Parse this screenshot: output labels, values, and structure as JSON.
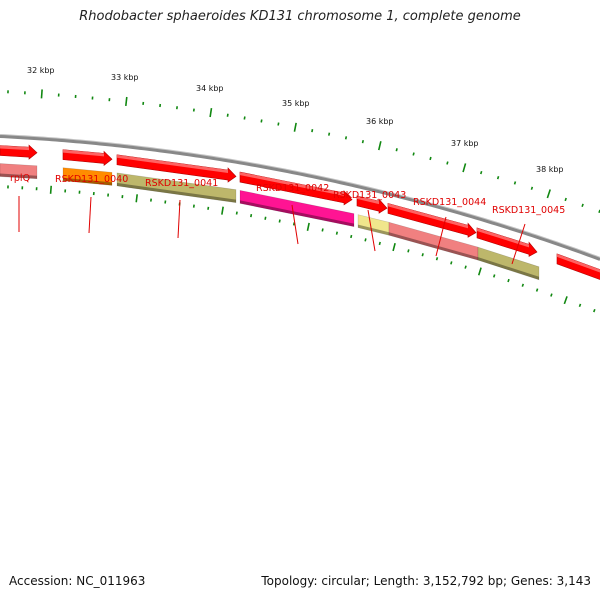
{
  "title": "Rhodobacter sphaeroides KD131 chromosome 1, complete genome",
  "accession": "Accession: NC_011963",
  "summary": "Topology: circular; Length: 3,152,792 bp; Genes: 3,143",
  "colors": {
    "cds_arrow": "#ff0000",
    "backbone": "#888888",
    "tick": "#118811",
    "label": "#e00000"
  },
  "genes": [
    {
      "label": "rplQ",
      "color": "#f08080"
    },
    {
      "label": "RSKD131_0040",
      "color": "#ff8c00"
    },
    {
      "label": "RSKD131_0041",
      "color": "#bdb76b"
    },
    {
      "label": "RSKD131_0042",
      "color": "#ff1493"
    },
    {
      "label": "RSKD131_0043",
      "color": "#f0e68c"
    },
    {
      "label": "RSKD131_0044",
      "color": "#f08080"
    },
    {
      "label": "RSKD131_0045",
      "color": "#bdb76b"
    }
  ],
  "scale_labels": [
    "32 kbp",
    "33 kbp",
    "34 kbp",
    "35 kbp",
    "36 kbp",
    "37 kbp",
    "38 kbp"
  ]
}
